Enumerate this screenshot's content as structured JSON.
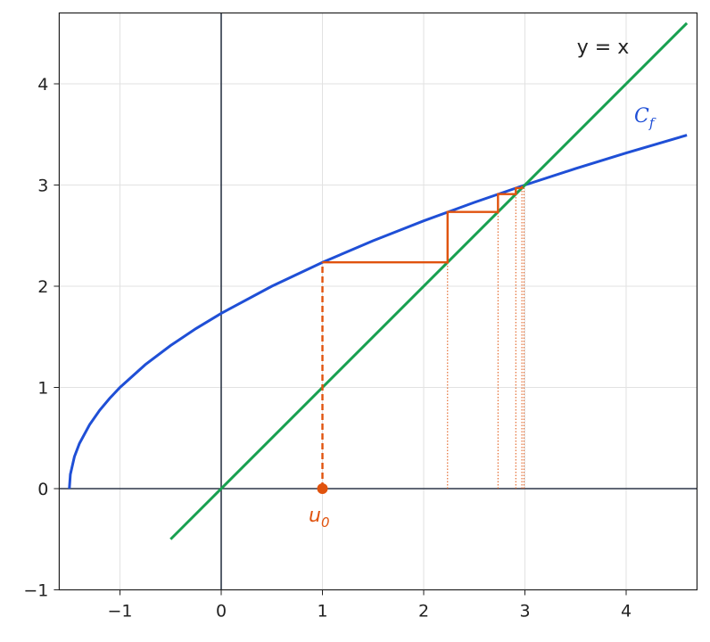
{
  "chart_data": {
    "type": "cobweb",
    "xlim": [
      -1.6,
      4.7
    ],
    "ylim": [
      -1,
      4.7
    ],
    "xticks": [
      {
        "value": -1,
        "label": "−1"
      },
      0,
      1,
      2,
      3,
      4
    ],
    "yticks": [
      {
        "value": -1,
        "label": "−1"
      },
      0,
      1,
      2,
      3,
      4
    ],
    "grid": true,
    "series": [
      {
        "name": "C_f",
        "color": "#1f4fd6",
        "x": [
          -1.5,
          -1.49,
          -1.45,
          -1.4,
          -1.3,
          -1.2,
          -1.1,
          -1,
          -0.75,
          -0.5,
          -0.25,
          0,
          0.5,
          1,
          1.5,
          2,
          2.5,
          3,
          3.5,
          4,
          4.6
        ],
        "values": [
          0,
          0.141,
          0.316,
          0.447,
          0.632,
          0.775,
          0.894,
          1,
          1.225,
          1.414,
          1.581,
          1.732,
          2,
          2.236,
          2.449,
          2.646,
          2.828,
          3,
          3.162,
          3.317,
          3.493
        ]
      },
      {
        "name": "y = x",
        "color": "#18a050",
        "x": [
          -0.5,
          4.6
        ],
        "values": [
          -0.5,
          4.6
        ]
      }
    ],
    "sequence": [
      1,
      2.236,
      2.734,
      2.91,
      2.97,
      2.99
    ],
    "sequence_color": "#e0530e",
    "curve_label": {
      "base": "C",
      "subscript": "f"
    },
    "start_label": {
      "base": "u",
      "subscript": "0"
    }
  }
}
